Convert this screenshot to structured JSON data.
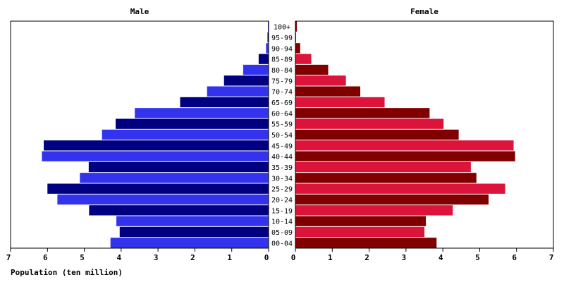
{
  "chart_data": {
    "type": "pyramid",
    "x_label": "Population (ten million)",
    "categories": [
      "100+",
      "95-99",
      "90-94",
      "85-89",
      "80-84",
      "75-79",
      "70-74",
      "65-69",
      "60-64",
      "55-59",
      "50-54",
      "45-49",
      "40-44",
      "35-39",
      "30-34",
      "25-29",
      "20-24",
      "15-19",
      "10-14",
      "05-09",
      "00-04"
    ],
    "series": [
      {
        "name": "Male",
        "colors": [
          "#3333ee",
          "#000080"
        ],
        "values": [
          0.02,
          0.03,
          0.07,
          0.27,
          0.69,
          1.21,
          1.67,
          2.4,
          3.63,
          4.15,
          4.52,
          6.1,
          6.15,
          4.88,
          5.12,
          6.0,
          5.73,
          4.87,
          4.13,
          4.04,
          4.29
        ]
      },
      {
        "name": "Female",
        "colors": [
          "#800000",
          "#dc143c"
        ],
        "values": [
          0.04,
          0.02,
          0.13,
          0.43,
          0.89,
          1.37,
          1.76,
          2.42,
          3.64,
          4.02,
          4.43,
          5.92,
          5.96,
          4.76,
          4.91,
          5.69,
          5.24,
          4.27,
          3.54,
          3.5,
          3.83
        ]
      }
    ],
    "xlim": [
      0,
      7
    ],
    "xticks": [
      0,
      1,
      2,
      3,
      4,
      5,
      6,
      7
    ]
  }
}
